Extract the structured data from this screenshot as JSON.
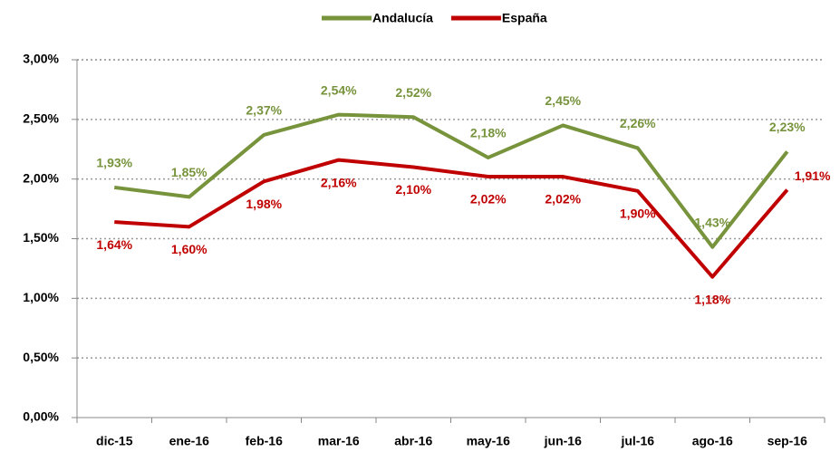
{
  "chart_data": {
    "type": "line",
    "categories": [
      "dic-15",
      "ene-16",
      "feb-16",
      "mar-16",
      "abr-16",
      "may-16",
      "jun-16",
      "jul-16",
      "ago-16",
      "sep-16"
    ],
    "series": [
      {
        "name": "Andalucía",
        "color": "#77933c",
        "values": [
          1.93,
          1.85,
          2.37,
          2.54,
          2.52,
          2.18,
          2.45,
          2.26,
          1.43,
          2.23
        ],
        "value_labels": [
          "1,93%",
          "1,85%",
          "2,37%",
          "2,54%",
          "2,52%",
          "2,18%",
          "2,45%",
          "2,26%",
          "1,43%",
          "2,23%"
        ]
      },
      {
        "name": "España",
        "color": "#c00000",
        "values": [
          1.64,
          1.6,
          1.98,
          2.16,
          2.1,
          2.02,
          2.02,
          1.9,
          1.18,
          1.91
        ],
        "value_labels": [
          "1,64%",
          "1,60%",
          "1,98%",
          "2,16%",
          "2,10%",
          "2,02%",
          "2,02%",
          "1,90%",
          "1,18%",
          "1,91%"
        ]
      }
    ],
    "ylim": [
      0,
      3
    ],
    "yticks": [
      {
        "value": 0,
        "label": "0,00%"
      },
      {
        "value": 0.5,
        "label": "0,50%"
      },
      {
        "value": 1,
        "label": "1,00%"
      },
      {
        "value": 1.5,
        "label": "1,50%"
      },
      {
        "value": 2,
        "label": "2,00%"
      },
      {
        "value": 2.5,
        "label": "2,50%"
      },
      {
        "value": 3,
        "label": "3,00%"
      }
    ],
    "grid": true,
    "legend": "top"
  }
}
